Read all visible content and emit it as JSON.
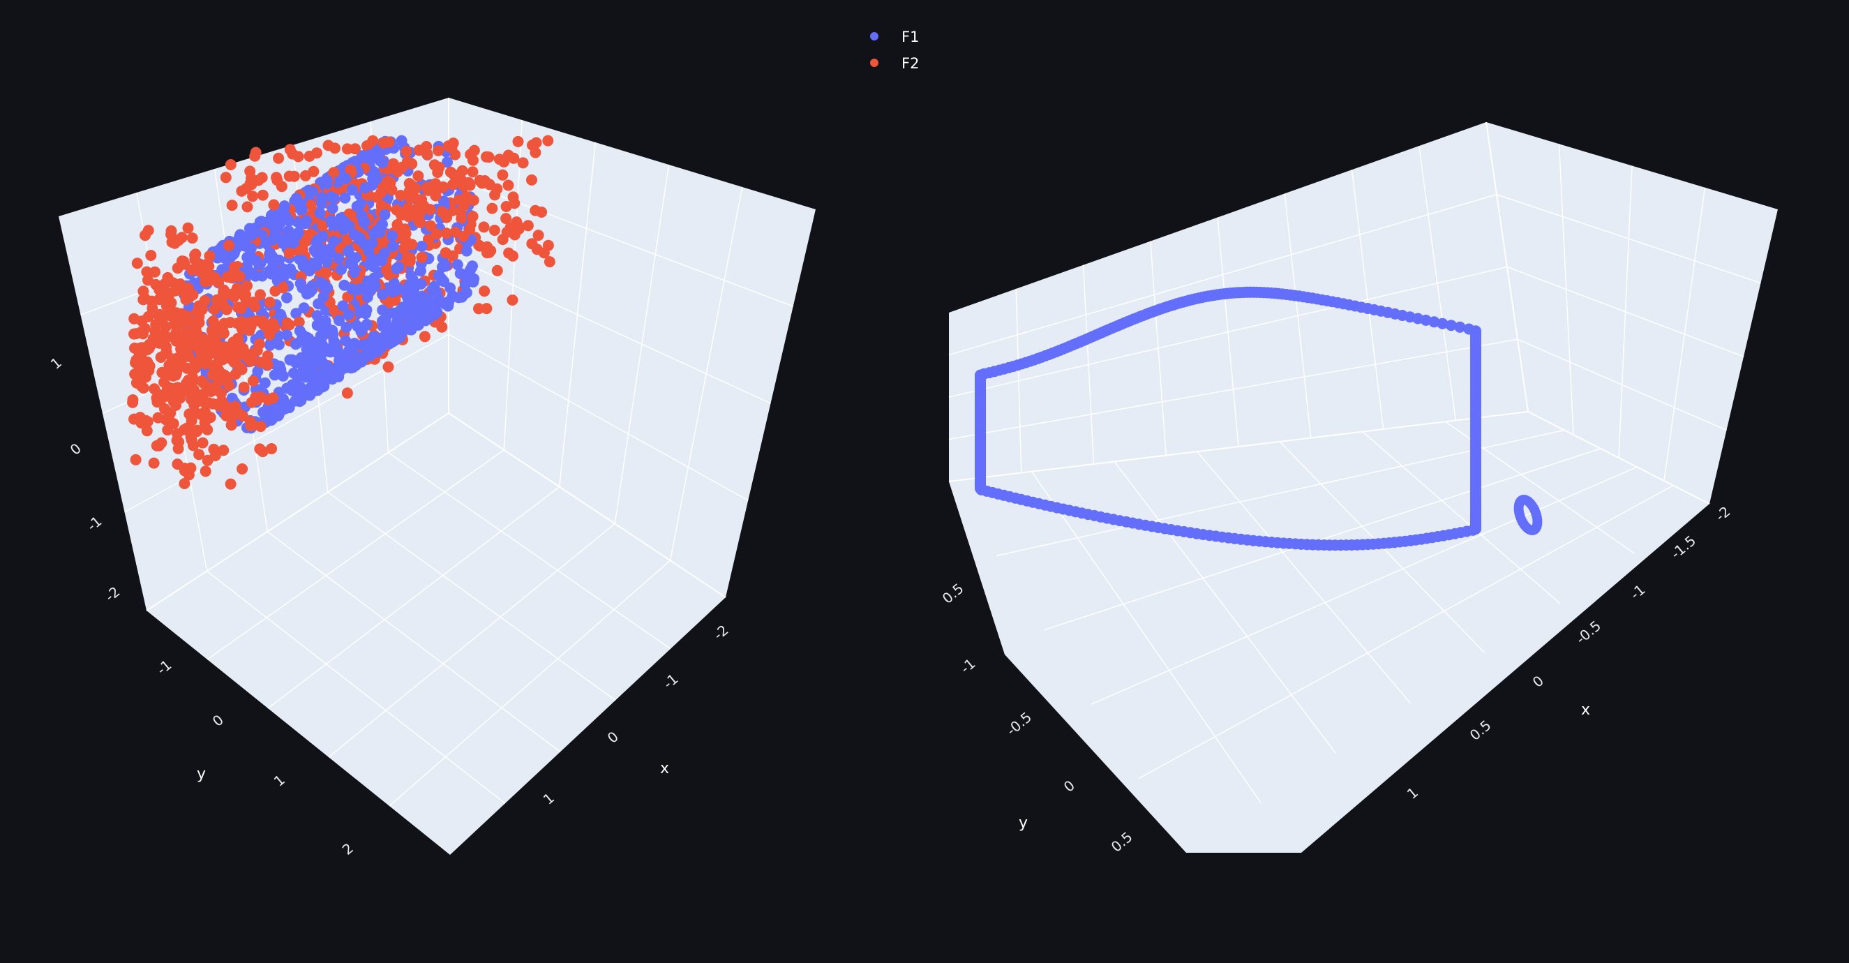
{
  "legend": {
    "placement": "top-center",
    "items": [
      {
        "label": "F1",
        "color": "#636efa"
      },
      {
        "label": "F2",
        "color": "#ef553b"
      }
    ]
  },
  "colors": {
    "background": "#111217",
    "scene_panel": "#e5ecf6",
    "grid": "#ffffff",
    "tick_text": "#e8e8ee"
  },
  "chart_data": [
    {
      "type": "scatter",
      "dimensions": 3,
      "title": "",
      "axes": {
        "x": {
          "title": "x",
          "ticks": [
            "-2",
            "-1",
            "0",
            "1"
          ],
          "range": [
            -2.5,
            2.5
          ]
        },
        "y": {
          "title": "y",
          "ticks": [
            "-1",
            "0",
            "1",
            "2"
          ],
          "range": [
            -2,
            2.5
          ]
        },
        "z": {
          "title": "",
          "ticks": [
            "1",
            "0",
            "-1",
            "-2"
          ],
          "range": [
            -2.5,
            1.8
          ]
        }
      },
      "grid": true,
      "series": [
        {
          "name": "F1",
          "color": "#636efa",
          "shape": "cylinder shell along y",
          "cylinder_radius": 1.0,
          "y_extent": [
            -1.5,
            1.5
          ],
          "x_extent": [
            -1.0,
            1.0
          ]
        },
        {
          "name": "F2",
          "color": "#ef553b",
          "shape": "intersecting sheet (saddle-like) around x = 0",
          "x_extent": [
            -2.2,
            2.2
          ],
          "y_extent": [
            -1.8,
            2.0
          ],
          "z_extent": [
            -2.4,
            1.6
          ]
        }
      ]
    },
    {
      "type": "scatter",
      "dimensions": 3,
      "title": "",
      "axes": {
        "x": {
          "title": "x",
          "ticks": [
            "-2",
            "-1.5",
            "-1",
            "-0.5",
            "0",
            "0.5",
            "1"
          ],
          "range": [
            -2.2,
            1.3
          ]
        },
        "y": {
          "title": "y",
          "ticks": [
            "-1",
            "-0.5",
            "0",
            "0.5"
          ],
          "range": [
            -1.1,
            0.7
          ]
        },
        "z": {
          "title": "",
          "ticks": [
            "0.5"
          ],
          "range": [
            -0.6,
            0.8
          ]
        }
      },
      "grid": true,
      "series": [
        {
          "name": "F1",
          "color": "#636efa",
          "shape": "large teardrop-shaped closed curve plus a small closed loop"
        }
      ]
    }
  ]
}
